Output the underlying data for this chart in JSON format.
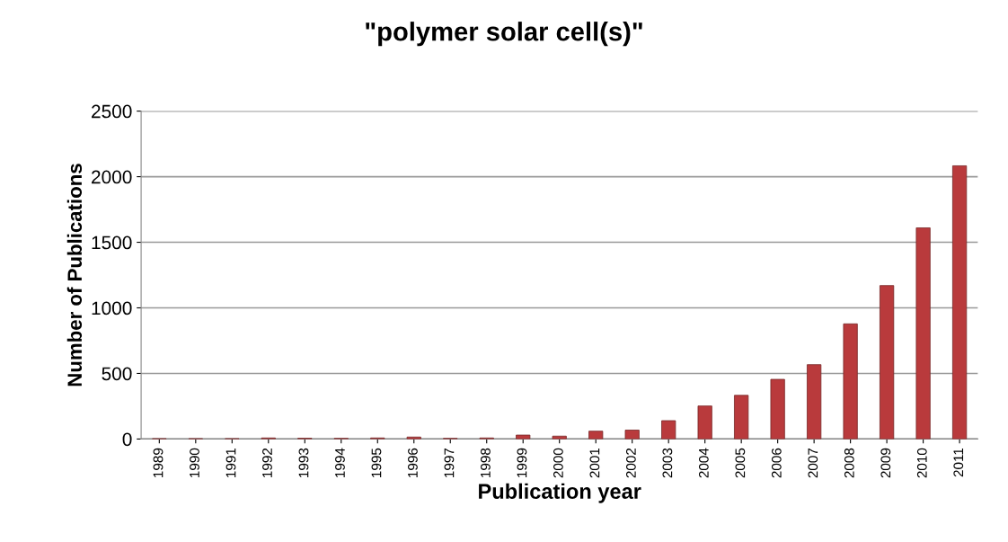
{
  "chart_data": {
    "type": "bar",
    "title": "\"polymer solar cell(s)\"",
    "xlabel": "Publication year",
    "ylabel": "Number of Publications",
    "categories": [
      "1989",
      "1990",
      "1991",
      "1992",
      "1993",
      "1994",
      "1995",
      "1996",
      "1997",
      "1998",
      "1999",
      "2000",
      "2001",
      "2002",
      "2003",
      "2004",
      "2005",
      "2006",
      "2007",
      "2008",
      "2009",
      "2010",
      "2011"
    ],
    "values": [
      3,
      3,
      3,
      8,
      6,
      5,
      8,
      15,
      5,
      8,
      30,
      22,
      60,
      68,
      140,
      252,
      333,
      455,
      567,
      878,
      1170,
      1610,
      2083
    ],
    "color": "#b93a3c",
    "ylim": [
      0,
      2500
    ],
    "yticks": [
      0,
      500,
      1000,
      1500,
      2000,
      2500
    ],
    "grid": "y"
  }
}
